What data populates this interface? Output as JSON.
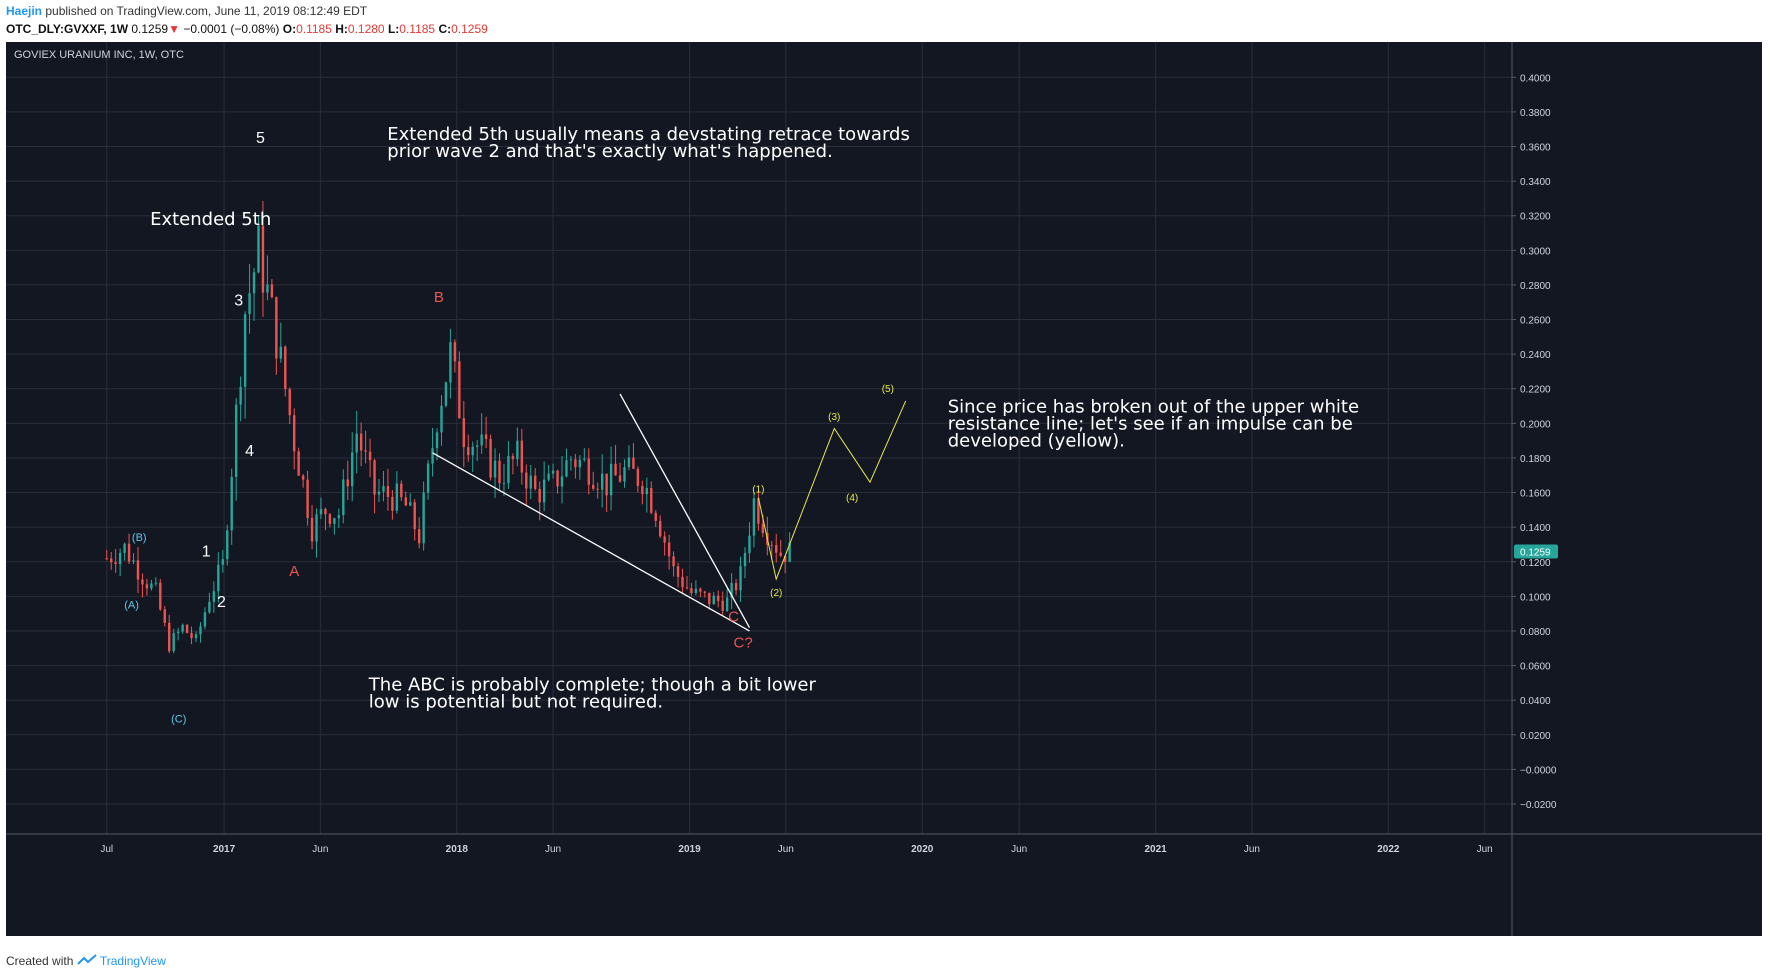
{
  "header": {
    "author": "Haejin",
    "published": "published on TradingView.com, June 11, 2019 08:12:49 EDT",
    "symbol": "OTC_DLY:GVXXF, 1W",
    "last": "0.1259",
    "down_arrow": "▼",
    "change": "−0.0001 (−0.08%)",
    "o_label": "O:",
    "o_value": "0.1185",
    "h_label": "H:",
    "h_value": "0.1280",
    "l_label": "L:",
    "l_value": "0.1185",
    "c_label": "C:",
    "c_value": "0.1259"
  },
  "footer": {
    "created": "Created with",
    "brand": "TradingView",
    "logo_icon": "tradingview-logo-icon"
  },
  "colors": {
    "background": "#131722",
    "grid": "#2a2e39",
    "up": "#26a69a",
    "down": "#ef5350",
    "white": "#ffffff",
    "cyan": "#5ec8e8",
    "red": "#ef5350",
    "yellow": "#e8e84a",
    "price_badge": "#26a69a"
  },
  "chart_data": {
    "type": "candlestick",
    "title": "GOVIEX URANIUM INC, 1W, OTC",
    "ylim": [
      -0.02,
      0.41
    ],
    "y_ticks": [
      -0.02,
      0.0,
      0.02,
      0.04,
      0.06,
      0.08,
      0.1,
      0.12,
      0.14,
      0.16,
      0.18,
      0.2,
      0.22,
      0.24,
      0.26,
      0.28,
      0.3,
      0.32,
      0.34,
      0.36,
      0.38,
      0.4
    ],
    "y_tick_labels": [
      "−0.0200",
      "−0.0000",
      "0.0200",
      "0.0400",
      "0.0600",
      "0.0800",
      "0.1000",
      "0.1200",
      "0.1400",
      "0.1600",
      "0.1800",
      "0.2000",
      "0.2200",
      "0.2400",
      "0.2600",
      "0.2800",
      "0.3000",
      "0.3200",
      "0.3400",
      "0.3600",
      "0.3800",
      "0.4000"
    ],
    "xlim": [
      "2016-01-25",
      "2023-08-10"
    ],
    "x_ticks": [
      "2016-07-01",
      "2017-01-01",
      "2017-06-01",
      "2018-01-01",
      "2018-06-01",
      "2019-01-01",
      "2019-06-01",
      "2020-01-01",
      "2020-06-01",
      "2021-01-01",
      "2021-06-01",
      "2022-01-01",
      "2022-06-01"
    ],
    "x_tick_labels": [
      "Jul",
      "2017",
      "Jun",
      "2018",
      "Jun",
      "2019",
      "Jun",
      "2020",
      "Jun",
      "2021",
      "Jun",
      "2022",
      "Jun"
    ],
    "last_price": 0.1259,
    "last_price_label": "0.1259",
    "price_path": [
      [
        "2016-07-01",
        0.122
      ],
      [
        "2016-07-29",
        0.128
      ],
      [
        "2016-08-26",
        0.112
      ],
      [
        "2016-09-16",
        0.102
      ],
      [
        "2016-10-07",
        0.072
      ],
      [
        "2016-10-28",
        0.082
      ],
      [
        "2016-11-18",
        0.074
      ],
      [
        "2016-12-09",
        0.1
      ],
      [
        "2016-12-30",
        0.118
      ],
      [
        "2017-01-13",
        0.175
      ],
      [
        "2017-02-03",
        0.265
      ],
      [
        "2017-02-24",
        0.3
      ],
      [
        "2017-03-24",
        0.25
      ],
      [
        "2017-04-21",
        0.19
      ],
      [
        "2017-05-19",
        0.14
      ],
      [
        "2017-06-09",
        0.15
      ],
      [
        "2017-06-30",
        0.148
      ],
      [
        "2017-07-28",
        0.195
      ],
      [
        "2017-08-25",
        0.16
      ],
      [
        "2017-09-22",
        0.158
      ],
      [
        "2017-10-13",
        0.152
      ],
      [
        "2017-11-03",
        0.135
      ],
      [
        "2017-12-01",
        0.205
      ],
      [
        "2017-12-22",
        0.24
      ],
      [
        "2018-01-12",
        0.195
      ],
      [
        "2018-02-09",
        0.185
      ],
      [
        "2018-03-09",
        0.17
      ],
      [
        "2018-04-06",
        0.18
      ],
      [
        "2018-05-04",
        0.16
      ],
      [
        "2018-06-01",
        0.165
      ],
      [
        "2018-06-29",
        0.18
      ],
      [
        "2018-07-27",
        0.175
      ],
      [
        "2018-08-24",
        0.165
      ],
      [
        "2018-09-21",
        0.172
      ],
      [
        "2018-10-19",
        0.168
      ],
      [
        "2018-11-09",
        0.15
      ],
      [
        "2018-12-07",
        0.115
      ],
      [
        "2019-01-04",
        0.102
      ],
      [
        "2019-02-01",
        0.098
      ],
      [
        "2019-03-01",
        0.097
      ],
      [
        "2019-03-22",
        0.112
      ],
      [
        "2019-04-12",
        0.155
      ],
      [
        "2019-05-03",
        0.138
      ],
      [
        "2019-05-24",
        0.125
      ],
      [
        "2019-06-10",
        0.1259
      ]
    ],
    "wedge_lines": [
      {
        "name": "lower",
        "points": [
          [
            "2017-11-24",
            0.183
          ],
          [
            "2019-04-05",
            0.08
          ]
        ]
      },
      {
        "name": "upper",
        "points": [
          [
            "2018-09-14",
            0.217
          ],
          [
            "2019-04-05",
            0.082
          ]
        ]
      }
    ],
    "projection": {
      "name": "yellow-impulse",
      "points": [
        [
          "2019-04-19",
          0.157
        ],
        [
          "2019-05-17",
          0.11
        ],
        [
          "2019-08-16",
          0.197
        ],
        [
          "2019-10-11",
          0.166
        ],
        [
          "2019-12-06",
          0.213
        ]
      ]
    },
    "labels": [
      {
        "text": "5",
        "date": "2017-02-27",
        "y": 0.362,
        "color": "white",
        "size": 16
      },
      {
        "text": "3",
        "date": "2017-01-24",
        "y": 0.268,
        "color": "white",
        "size": 16
      },
      {
        "text": "4",
        "date": "2017-02-10",
        "y": 0.181,
        "color": "white",
        "size": 16
      },
      {
        "text": "1",
        "date": "2016-12-04",
        "y": 0.123,
        "color": "white",
        "size": 16
      },
      {
        "text": "2",
        "date": "2016-12-28",
        "y": 0.094,
        "color": "white",
        "size": 16
      },
      {
        "text": "(B)",
        "date": "2016-08-21",
        "y": 0.132,
        "color": "cyan",
        "size": 11
      },
      {
        "text": "(A)",
        "date": "2016-08-09",
        "y": 0.093,
        "color": "cyan",
        "size": 11
      },
      {
        "text": "(C)",
        "date": "2016-10-22",
        "y": 0.027,
        "color": "cyan",
        "size": 11
      },
      {
        "text": "A",
        "date": "2017-04-21",
        "y": 0.1118,
        "color": "red",
        "size": 15
      },
      {
        "text": "B",
        "date": "2017-12-04",
        "y": 0.27,
        "color": "red",
        "size": 15
      },
      {
        "text": "C",
        "date": "2019-03-11",
        "y": 0.0855,
        "color": "red",
        "size": 15
      },
      {
        "text": "C?",
        "date": "2019-03-26",
        "y": 0.0705,
        "color": "red",
        "size": 15
      },
      {
        "text": "(1)",
        "date": "2019-04-19",
        "y": 0.1601,
        "color": "yellow",
        "size": 10
      },
      {
        "text": "(2)",
        "date": "2019-05-17",
        "y": 0.1001,
        "color": "yellow",
        "size": 10
      },
      {
        "text": "(3)",
        "date": "2019-08-16",
        "y": 0.202,
        "color": "yellow",
        "size": 10
      },
      {
        "text": "(4)",
        "date": "2019-09-13",
        "y": 0.155,
        "color": "yellow",
        "size": 10
      },
      {
        "text": "(5)",
        "date": "2019-11-08",
        "y": 0.218,
        "color": "yellow",
        "size": 10
      }
    ],
    "annotations": [
      {
        "lines": [
          "Extended 5th"
        ],
        "date": "2016-09-07",
        "y": 0.3145,
        "size": 18
      },
      {
        "lines": [
          "Extended 5th usually means a devstating retrace towards",
          "prior wave 2 and that's exactly what's happened."
        ],
        "date": "2017-09-14",
        "y": 0.3638,
        "size": 18
      },
      {
        "lines": [
          "Since price has broken out of the upper white",
          "resistance line; let's see if an impulse can be",
          "developed (yellow)."
        ],
        "date": "2020-02-10",
        "y": 0.2062,
        "size": 18
      },
      {
        "lines": [
          "The ABC is probably complete; though a bit lower",
          "low is potential but not required."
        ],
        "date": "2017-08-16",
        "y": 0.0455,
        "size": 18
      }
    ]
  }
}
